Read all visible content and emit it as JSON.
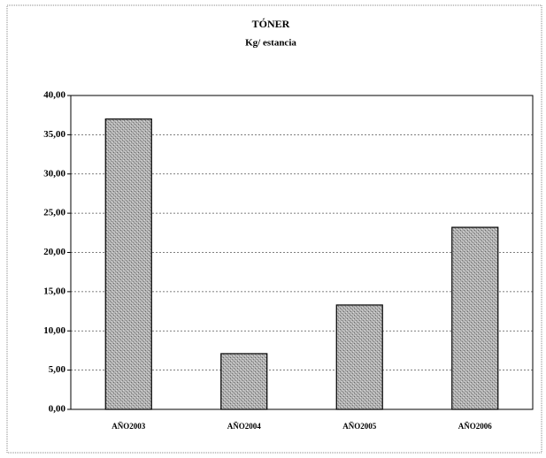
{
  "chart_data": {
    "type": "bar",
    "title": "TÓNER",
    "subtitle": "Kg/ estancia",
    "categories": [
      "AÑO2003",
      "AÑO2004",
      "AÑO2005",
      "AÑO2006"
    ],
    "values": [
      37.0,
      7.1,
      13.3,
      23.2
    ],
    "color": "#a0a0a0",
    "ylim": [
      0,
      40
    ],
    "yticks": [
      {
        "value": 0,
        "label": "0,00"
      },
      {
        "value": 5,
        "label": "5,00"
      },
      {
        "value": 10,
        "label": "10,00"
      },
      {
        "value": 15,
        "label": "15,00"
      },
      {
        "value": 20,
        "label": "20,00"
      },
      {
        "value": 25,
        "label": "25,00"
      },
      {
        "value": 30,
        "label": "30,00"
      },
      {
        "value": 35,
        "label": "35,00"
      },
      {
        "value": 40,
        "label": "40,00"
      }
    ],
    "grid": true
  }
}
